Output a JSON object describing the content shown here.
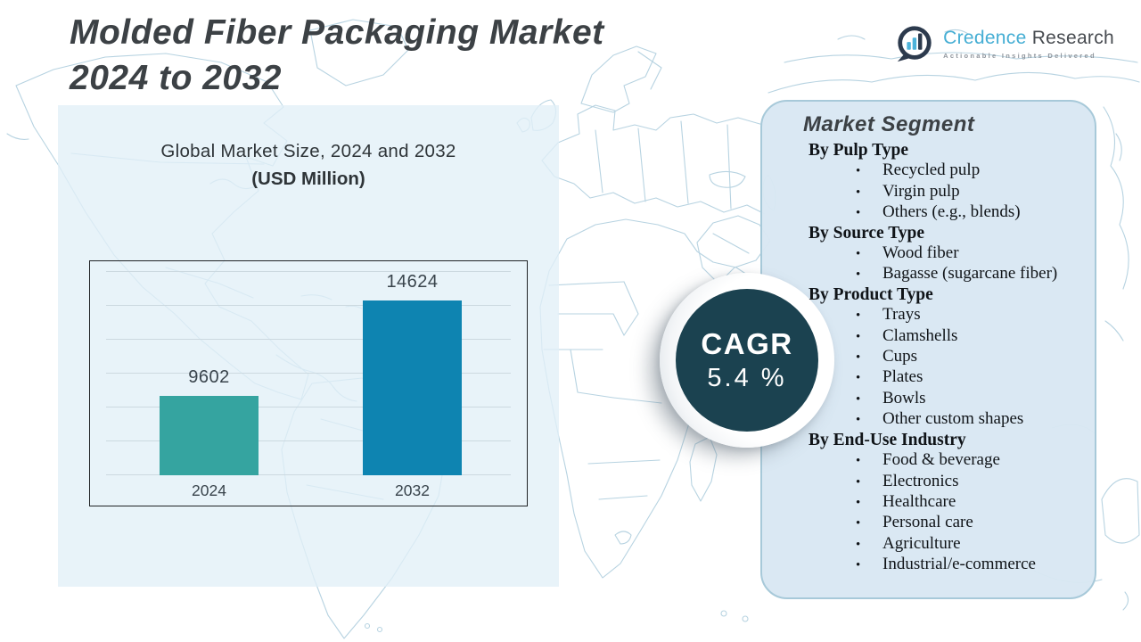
{
  "header": {
    "title_line1": "Molded Fiber Packaging Market",
    "title_line2": "2024 to 2032"
  },
  "logo": {
    "brand_primary": "Credence",
    "brand_secondary": "Research",
    "tagline": "Actionable Insights Delivered"
  },
  "chart_panel": {
    "subtitle_line1": "Global Market Size, 2024 and 2032",
    "subtitle_line2": "(USD Million)"
  },
  "chart_data": {
    "type": "bar",
    "title": "Global Market Size, 2024 and 2032 (USD Million)",
    "categories": [
      "2024",
      "2032"
    ],
    "values": [
      9602,
      14624
    ],
    "unit": "USD Million",
    "ylim": [
      5480,
      16650
    ],
    "grid": true,
    "gridline_count": 7,
    "legend": "none",
    "bar_colors": [
      "#35a4a0",
      "#0e84b1"
    ]
  },
  "cagr": {
    "label": "CAGR",
    "value": "5.4 %",
    "circle_color": "#1b4250"
  },
  "segments": {
    "title": "Market Segment",
    "sections": [
      {
        "heading": "By Pulp Type",
        "items": [
          "Recycled pulp",
          "Virgin pulp",
          "Others (e.g., blends)"
        ]
      },
      {
        "heading": "By Source Type",
        "items": [
          "Wood fiber",
          "Bagasse (sugarcane fiber)"
        ]
      },
      {
        "heading": "By Product Type",
        "items": [
          "Trays",
          "Clamshells",
          "Cups",
          "Plates",
          "Bowls",
          "Other custom shapes"
        ]
      },
      {
        "heading": "By End-Use Industry",
        "items": [
          "Food & beverage",
          "Electronics",
          "Healthcare",
          "Personal care",
          "Agriculture",
          "Industrial/e-commerce"
        ]
      }
    ]
  },
  "colors": {
    "title_text": "#3c4145",
    "bar_2024": "#35a4a0",
    "bar_2032": "#0e84b1",
    "cagr_circle": "#1b4250",
    "left_panel": "#e2eff7",
    "right_panel": "#d8e7f1",
    "right_panel_border": "#a7c9d9",
    "map_line": "#b7d3e1",
    "brand_blue": "#45aed4"
  }
}
